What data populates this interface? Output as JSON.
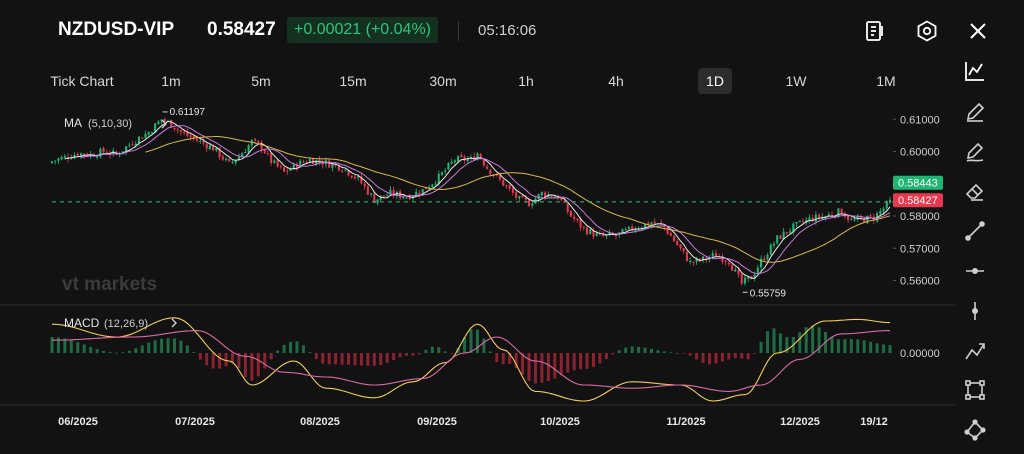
{
  "header": {
    "symbol": "NZDUSD-VIP",
    "price": "0.58427",
    "change": "+0.00021 (+0.04%)",
    "time": "05:16:06",
    "icons": [
      "contract-details-icon",
      "settings-icon",
      "close-icon"
    ]
  },
  "timeframes": [
    {
      "label": "Tick Chart",
      "active": false
    },
    {
      "label": "1m",
      "active": false
    },
    {
      "label": "5m",
      "active": false
    },
    {
      "label": "15m",
      "active": false
    },
    {
      "label": "30m",
      "active": false
    },
    {
      "label": "1h",
      "active": false
    },
    {
      "label": "4h",
      "active": false
    },
    {
      "label": "1D",
      "active": true
    },
    {
      "label": "1W",
      "active": false
    },
    {
      "label": "1M",
      "active": false
    }
  ],
  "toolbar": {
    "icons": [
      "chart-type-icon",
      "pencil-icon",
      "pencil-line-icon",
      "eraser-icon",
      "trend-line-icon",
      "horizontal-line-icon",
      "vertical-line-icon",
      "polyline-icon",
      "rectangle-icon",
      "pattern-icon"
    ]
  },
  "watermark": "vt markets",
  "colors": {
    "up": "#21b573",
    "down": "#e8384f",
    "ma5": "#e8e8e8",
    "ma10": "#c679e0",
    "ma30": "#d9b84a",
    "macd": "#f2cd5c",
    "signal": "#d86aa4",
    "background": "#121212"
  },
  "chart_data": {
    "type": "candlestick",
    "main_indicator": {
      "label": "MA",
      "params": "(5,10,30)"
    },
    "sub_indicator": {
      "label": "MACD",
      "params": "(12,26,9)"
    },
    "price_axis": {
      "ticks": [
        "0.61000",
        "0.60000",
        "0.59000",
        "0.58000",
        "0.57000",
        "0.56000"
      ],
      "ylim": [
        0.5555,
        0.6135
      ]
    },
    "macd_axis": {
      "ticks": [
        "0.00000"
      ]
    },
    "x_labels": [
      "06/2025",
      "07/2025",
      "08/2025",
      "09/2025",
      "10/2025",
      "11/2025",
      "12/2025",
      "19/12"
    ],
    "high_label": "0.61197",
    "low_label": "0.55759",
    "last_price_tag": "0.58443",
    "current_price_tag": "0.58427",
    "dashed_line_price": 0.5844,
    "close_path": [
      [
        0,
        0.597
      ],
      [
        5,
        0.5985
      ],
      [
        8,
        0.5995
      ],
      [
        12,
        0.599
      ],
      [
        16,
        0.6
      ],
      [
        20,
        0.599
      ],
      [
        25,
        0.603
      ],
      [
        30,
        0.606
      ],
      [
        34,
        0.61
      ],
      [
        37,
        0.6085
      ],
      [
        40,
        0.606
      ],
      [
        45,
        0.6035
      ],
      [
        50,
        0.601
      ],
      [
        55,
        0.596
      ],
      [
        58,
        0.5985
      ],
      [
        62,
        0.603
      ],
      [
        65,
        0.6015
      ],
      [
        68,
        0.597
      ],
      [
        72,
        0.5935
      ],
      [
        76,
        0.596
      ],
      [
        80,
        0.5975
      ],
      [
        85,
        0.5965
      ],
      [
        90,
        0.595
      ],
      [
        95,
        0.5915
      ],
      [
        100,
        0.585
      ],
      [
        105,
        0.587
      ],
      [
        110,
        0.586
      ],
      [
        115,
        0.588
      ],
      [
        120,
        0.592
      ],
      [
        125,
        0.5975
      ],
      [
        130,
        0.5975
      ],
      [
        132,
        0.5995
      ],
      [
        135,
        0.595
      ],
      [
        140,
        0.59
      ],
      [
        145,
        0.585
      ],
      [
        148,
        0.584
      ],
      [
        152,
        0.587
      ],
      [
        157,
        0.586
      ],
      [
        161,
        0.58
      ],
      [
        165,
        0.576
      ],
      [
        170,
        0.5735
      ],
      [
        175,
        0.574
      ],
      [
        180,
        0.576
      ],
      [
        186,
        0.578
      ],
      [
        190,
        0.5765
      ],
      [
        194,
        0.571
      ],
      [
        198,
        0.5655
      ],
      [
        202,
        0.5665
      ],
      [
        206,
        0.568
      ],
      [
        210,
        0.566
      ],
      [
        214,
        0.559
      ],
      [
        217,
        0.561
      ],
      [
        220,
        0.566
      ],
      [
        225,
        0.573
      ],
      [
        230,
        0.5765
      ],
      [
        235,
        0.579
      ],
      [
        240,
        0.58
      ],
      [
        245,
        0.5815
      ],
      [
        248,
        0.5785
      ],
      [
        252,
        0.579
      ],
      [
        255,
        0.5795
      ],
      [
        260,
        0.5843
      ]
    ],
    "ma_series": [
      {
        "name": "MA5",
        "period": 5
      },
      {
        "name": "MA10",
        "period": 10
      },
      {
        "name": "MA30",
        "period": 30
      }
    ],
    "macd_series": [
      {
        "name": "MACD (fast)",
        "points": [
          [
            0,
            0.0018
          ],
          [
            20,
            0.001
          ],
          [
            38,
            0.0022
          ],
          [
            55,
            -0.0005
          ],
          [
            62,
            -0.002
          ],
          [
            75,
            -0.0005
          ],
          [
            85,
            -0.0022
          ],
          [
            100,
            -0.0028
          ],
          [
            112,
            -0.0018
          ],
          [
            122,
            -0.0006
          ],
          [
            132,
            0.0018
          ],
          [
            140,
            0.0002
          ],
          [
            150,
            -0.0024
          ],
          [
            165,
            -0.003
          ],
          [
            180,
            -0.0018
          ],
          [
            195,
            -0.002
          ],
          [
            205,
            -0.003
          ],
          [
            215,
            -0.0026
          ],
          [
            225,
            0.0
          ],
          [
            240,
            0.002
          ],
          [
            250,
            0.0021
          ],
          [
            260,
            0.0019
          ]
        ]
      },
      {
        "name": "Signal",
        "points": [
          [
            0,
            0.0008
          ],
          [
            25,
            0.001
          ],
          [
            45,
            0.0014
          ],
          [
            60,
            -0.0002
          ],
          [
            72,
            -0.0012
          ],
          [
            85,
            -0.0015
          ],
          [
            100,
            -0.002
          ],
          [
            115,
            -0.0016
          ],
          [
            128,
            0.0
          ],
          [
            138,
            0.001
          ],
          [
            150,
            -0.0005
          ],
          [
            165,
            -0.002
          ],
          [
            180,
            -0.0022
          ],
          [
            195,
            -0.002
          ],
          [
            210,
            -0.0024
          ],
          [
            220,
            -0.002
          ],
          [
            232,
            -0.0004
          ],
          [
            245,
            0.0012
          ],
          [
            260,
            0.0014
          ]
        ]
      }
    ],
    "grid": false,
    "legend": "top-left"
  }
}
